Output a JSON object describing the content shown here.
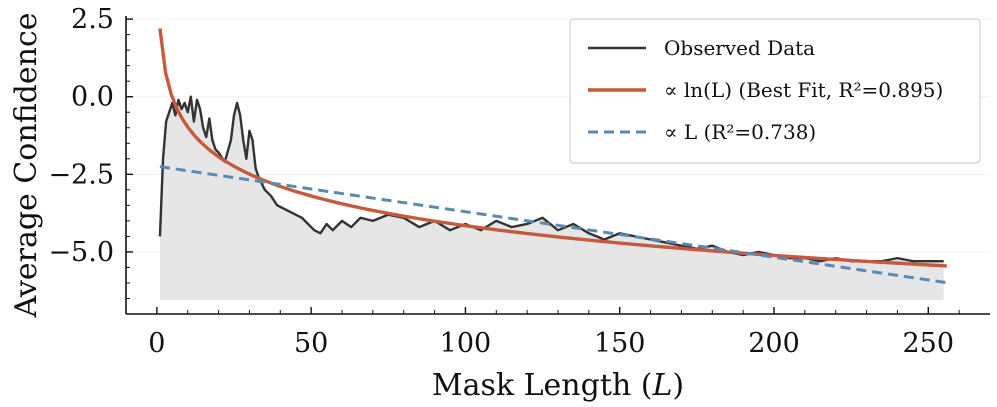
{
  "chart_data": {
    "type": "line",
    "title": "",
    "xlabel": "Mask Length (L)",
    "ylabel": "Average Confidence",
    "xlim": [
      -10,
      270
    ],
    "ylim": [
      -7.0,
      2.6
    ],
    "xticks": [
      0,
      50,
      100,
      150,
      200,
      250
    ],
    "yticks": [
      2.5,
      0.0,
      -2.5,
      -5.0
    ],
    "xtick_labels": [
      "0",
      "50",
      "100",
      "150",
      "200",
      "250"
    ],
    "ytick_labels": [
      "2.5",
      "0.0",
      "−2.5",
      "−5.0"
    ],
    "grid": true,
    "legend_position": "top-right",
    "fill_baseline": -6.55,
    "series": [
      {
        "name": "Observed Data",
        "style": "solid",
        "color": "#333333",
        "fill_color": "#e6e6e6",
        "x": [
          1,
          2,
          3,
          4,
          5,
          6,
          7,
          8,
          9,
          10,
          11,
          12,
          13,
          14,
          15,
          16,
          17,
          18,
          19,
          20,
          22,
          24,
          25,
          26,
          27,
          28,
          29,
          30,
          31,
          32,
          33,
          34,
          35,
          37,
          39,
          41,
          43,
          45,
          47,
          49,
          51,
          53,
          55,
          57,
          60,
          63,
          66,
          70,
          75,
          80,
          85,
          90,
          95,
          100,
          105,
          110,
          115,
          120,
          125,
          130,
          135,
          140,
          145,
          150,
          155,
          160,
          165,
          170,
          175,
          180,
          185,
          190,
          195,
          200,
          205,
          210,
          215,
          220,
          225,
          230,
          235,
          240,
          245,
          250,
          255
        ],
        "values": [
          -4.5,
          -2.0,
          -0.8,
          -0.5,
          -0.2,
          -0.6,
          -0.1,
          -0.4,
          -0.2,
          -0.5,
          0.0,
          -0.8,
          -0.1,
          -0.4,
          -1.0,
          -1.3,
          -0.7,
          -1.4,
          -1.7,
          -1.8,
          -2.1,
          -1.4,
          -0.6,
          -0.2,
          -0.6,
          -1.4,
          -2.0,
          -1.1,
          -1.4,
          -2.3,
          -2.6,
          -2.8,
          -3.0,
          -3.2,
          -3.5,
          -3.6,
          -3.7,
          -3.8,
          -3.9,
          -4.1,
          -4.3,
          -4.4,
          -4.1,
          -4.3,
          -4.0,
          -4.2,
          -3.9,
          -4.0,
          -3.8,
          -3.9,
          -4.2,
          -4.0,
          -4.3,
          -4.1,
          -4.3,
          -4.0,
          -4.2,
          -4.1,
          -3.9,
          -4.3,
          -4.1,
          -4.4,
          -4.6,
          -4.4,
          -4.5,
          -4.6,
          -4.7,
          -4.8,
          -4.9,
          -4.8,
          -5.0,
          -5.1,
          -5.0,
          -5.1,
          -5.2,
          -5.2,
          -5.3,
          -5.2,
          -5.3,
          -5.3,
          -5.3,
          -5.2,
          -5.3,
          -5.3,
          -5.3
        ]
      },
      {
        "name": "∝ ln(L) (Best Fit, R²=0.895)",
        "style": "solid",
        "color": "#c65a3f",
        "fit": "log",
        "a": 2.2,
        "b": -1.38,
        "x_range": [
          1,
          256
        ]
      },
      {
        "name": "∝ L (R²=0.738)",
        "style": "dashed",
        "color": "#5b8ab0",
        "fit": "linear",
        "a": -2.24,
        "b": -0.01465,
        "x_range": [
          1,
          256
        ]
      }
    ]
  }
}
